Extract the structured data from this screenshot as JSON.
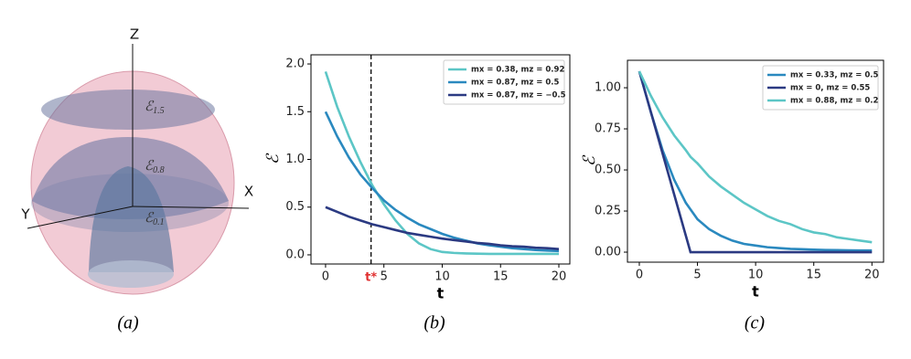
{
  "figure_a": {
    "axes": {
      "z": "Z",
      "x": "X",
      "y": "Y"
    },
    "levels": [
      {
        "symbol": "ℰ",
        "subscript": "1.5"
      },
      {
        "symbol": "ℰ",
        "subscript": "0.8"
      },
      {
        "symbol": "ℰ",
        "subscript": "0.1"
      }
    ],
    "caption": "(a)"
  },
  "chart_data": [
    {
      "type": "line",
      "caption": "(b)",
      "x_label": "t",
      "y_label": "ℰ",
      "x": [
        0,
        1,
        2,
        3,
        4,
        5,
        6,
        7,
        8,
        9,
        10,
        11,
        12,
        13,
        14,
        15,
        16,
        17,
        18,
        19,
        20
      ],
      "series": [
        {
          "name": "mx = 0.38, mz = 0.92",
          "color": "#5cc6c6",
          "values": [
            1.92,
            1.55,
            1.24,
            0.97,
            0.73,
            0.53,
            0.36,
            0.22,
            0.12,
            0.06,
            0.03,
            0.02,
            0.015,
            0.012,
            0.01,
            0.01,
            0.01,
            0.01,
            0.01,
            0.01,
            0.01
          ]
        },
        {
          "name": "mx = 0.87, mz = 0.5",
          "color": "#2a89bf",
          "values": [
            1.5,
            1.24,
            1.02,
            0.84,
            0.7,
            0.57,
            0.47,
            0.39,
            0.32,
            0.27,
            0.22,
            0.18,
            0.15,
            0.12,
            0.1,
            0.085,
            0.07,
            0.06,
            0.05,
            0.045,
            0.04
          ]
        },
        {
          "name": "mx = 0.87, mz = −0.5",
          "color": "#2b3a82",
          "values": [
            0.5,
            0.45,
            0.4,
            0.36,
            0.32,
            0.29,
            0.26,
            0.23,
            0.21,
            0.19,
            0.17,
            0.155,
            0.14,
            0.125,
            0.115,
            0.1,
            0.09,
            0.085,
            0.075,
            0.07,
            0.06
          ]
        }
      ],
      "xlim": [
        -1.25,
        20.94
      ],
      "xticks": [
        0,
        5,
        10,
        15,
        20
      ],
      "ylim": [
        -0.096,
        2.096
      ],
      "yticks": [
        {
          "value": 0,
          "label": "0.0"
        },
        {
          "value": 0.5,
          "label": "0.5"
        },
        {
          "value": 1,
          "label": "1.0"
        },
        {
          "value": 1.5,
          "label": "1.5"
        },
        {
          "value": 2,
          "label": "2.0"
        }
      ],
      "legend": "upper right",
      "annotations": [
        {
          "x": 3.9,
          "label": "t*",
          "color": "#e03030"
        }
      ]
    },
    {
      "type": "line",
      "caption": "(c)",
      "x_label": "t",
      "y_label": "ℰ",
      "x": [
        0,
        1,
        2,
        3,
        4,
        4.4,
        5,
        6,
        7,
        8,
        9,
        10,
        11,
        12,
        13,
        14,
        15,
        16,
        17,
        18,
        19,
        20
      ],
      "series": [
        {
          "name": "mx = 0.33, mz = 0.5",
          "color": "#2a89bf",
          "values": [
            1.1,
            0.85,
            0.62,
            0.44,
            0.3,
            0.26,
            0.2,
            0.14,
            0.1,
            0.07,
            0.05,
            0.04,
            0.03,
            0.025,
            0.02,
            0.018,
            0.015,
            0.013,
            0.012,
            0.011,
            0.01,
            0.01
          ]
        },
        {
          "name": "mx = 0, mz = 0.55",
          "color": "#2b3a82",
          "values": [
            1.1,
            0.85,
            0.6,
            0.35,
            0.1,
            0,
            0,
            0,
            0,
            0,
            0,
            0,
            0,
            0,
            0,
            0,
            0,
            0,
            0,
            0,
            0,
            0
          ]
        },
        {
          "name": "mx = 0.88, mz = 0.2",
          "color": "#5cc6c6",
          "values": [
            1.1,
            0.95,
            0.82,
            0.71,
            0.62,
            0.58,
            0.54,
            0.46,
            0.4,
            0.35,
            0.3,
            0.26,
            0.22,
            0.19,
            0.17,
            0.14,
            0.12,
            0.11,
            0.09,
            0.08,
            0.07,
            0.06
          ]
        }
      ],
      "xlim": [
        -1.02,
        21.0
      ],
      "xticks": [
        0,
        5,
        10,
        15,
        20
      ],
      "ylim": [
        -0.061,
        1.167
      ],
      "yticks": [
        {
          "value": 0,
          "label": "0.00"
        },
        {
          "value": 0.25,
          "label": "0.25"
        },
        {
          "value": 0.5,
          "label": "0.50"
        },
        {
          "value": 0.75,
          "label": "0.75"
        },
        {
          "value": 1,
          "label": "1.00"
        }
      ],
      "legend": "upper right"
    }
  ]
}
